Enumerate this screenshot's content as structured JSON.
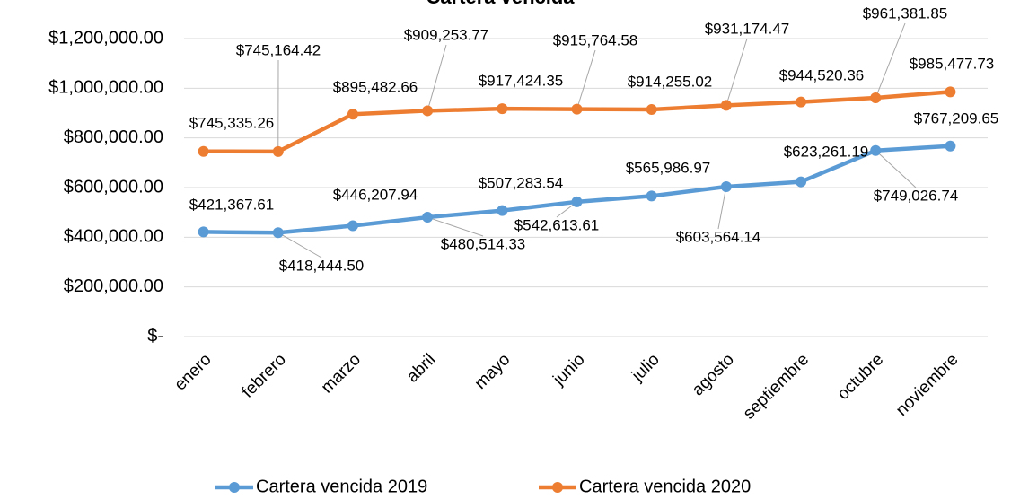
{
  "chart_data": {
    "type": "line",
    "title": "Cartera vencida",
    "categories": [
      "enero",
      "febrero",
      "marzo",
      "abril",
      "mayo",
      "junio",
      "julio",
      "agosto",
      "septiembre",
      "octubre",
      "noviembre"
    ],
    "series": [
      {
        "name": "Cartera vencida 2019",
        "color": "#5b9bd5",
        "values": [
          421367.61,
          418444.5,
          446207.94,
          480514.33,
          507283.54,
          542613.61,
          565986.97,
          603564.14,
          623261.19,
          749026.74,
          767209.65
        ],
        "value_labels": [
          "$421,367.61",
          "$418,444.50",
          "$446,207.94",
          "$480,514.33",
          "$507,283.54",
          "$542,613.61",
          "$565,986.97",
          "$603,564.14",
          "$623,261.19",
          "$749,026.74",
          "$767,209.65"
        ]
      },
      {
        "name": "Cartera vencida 2020",
        "color": "#ed7d31",
        "values": [
          745335.26,
          745164.42,
          895482.66,
          909253.77,
          917424.35,
          915764.58,
          914255.02,
          931174.47,
          944520.36,
          961381.85,
          985477.73
        ],
        "value_labels": [
          "$745,335.26",
          "$745,164.42",
          "$895,482.66",
          "$909,253.77",
          "$917,424.35",
          "$915,764.58",
          "$914,255.02",
          "$931,174.47",
          "$944,520.36",
          "$961,381.85",
          "$985,477.73"
        ]
      }
    ],
    "ylim": [
      0,
      1200000
    ],
    "yticks": [
      {
        "value": 0,
        "label": "$-"
      },
      {
        "value": 200000,
        "label": "$200,000.00"
      },
      {
        "value": 400000,
        "label": "$400,000.00"
      },
      {
        "value": 600000,
        "label": "$600,000.00"
      },
      {
        "value": 800000,
        "label": "$800,000.00"
      },
      {
        "value": 1000000,
        "label": "$1,000,000.00"
      },
      {
        "value": 1200000,
        "label": "$1,200,000.00"
      }
    ],
    "grid": true,
    "legend": "bottom"
  }
}
